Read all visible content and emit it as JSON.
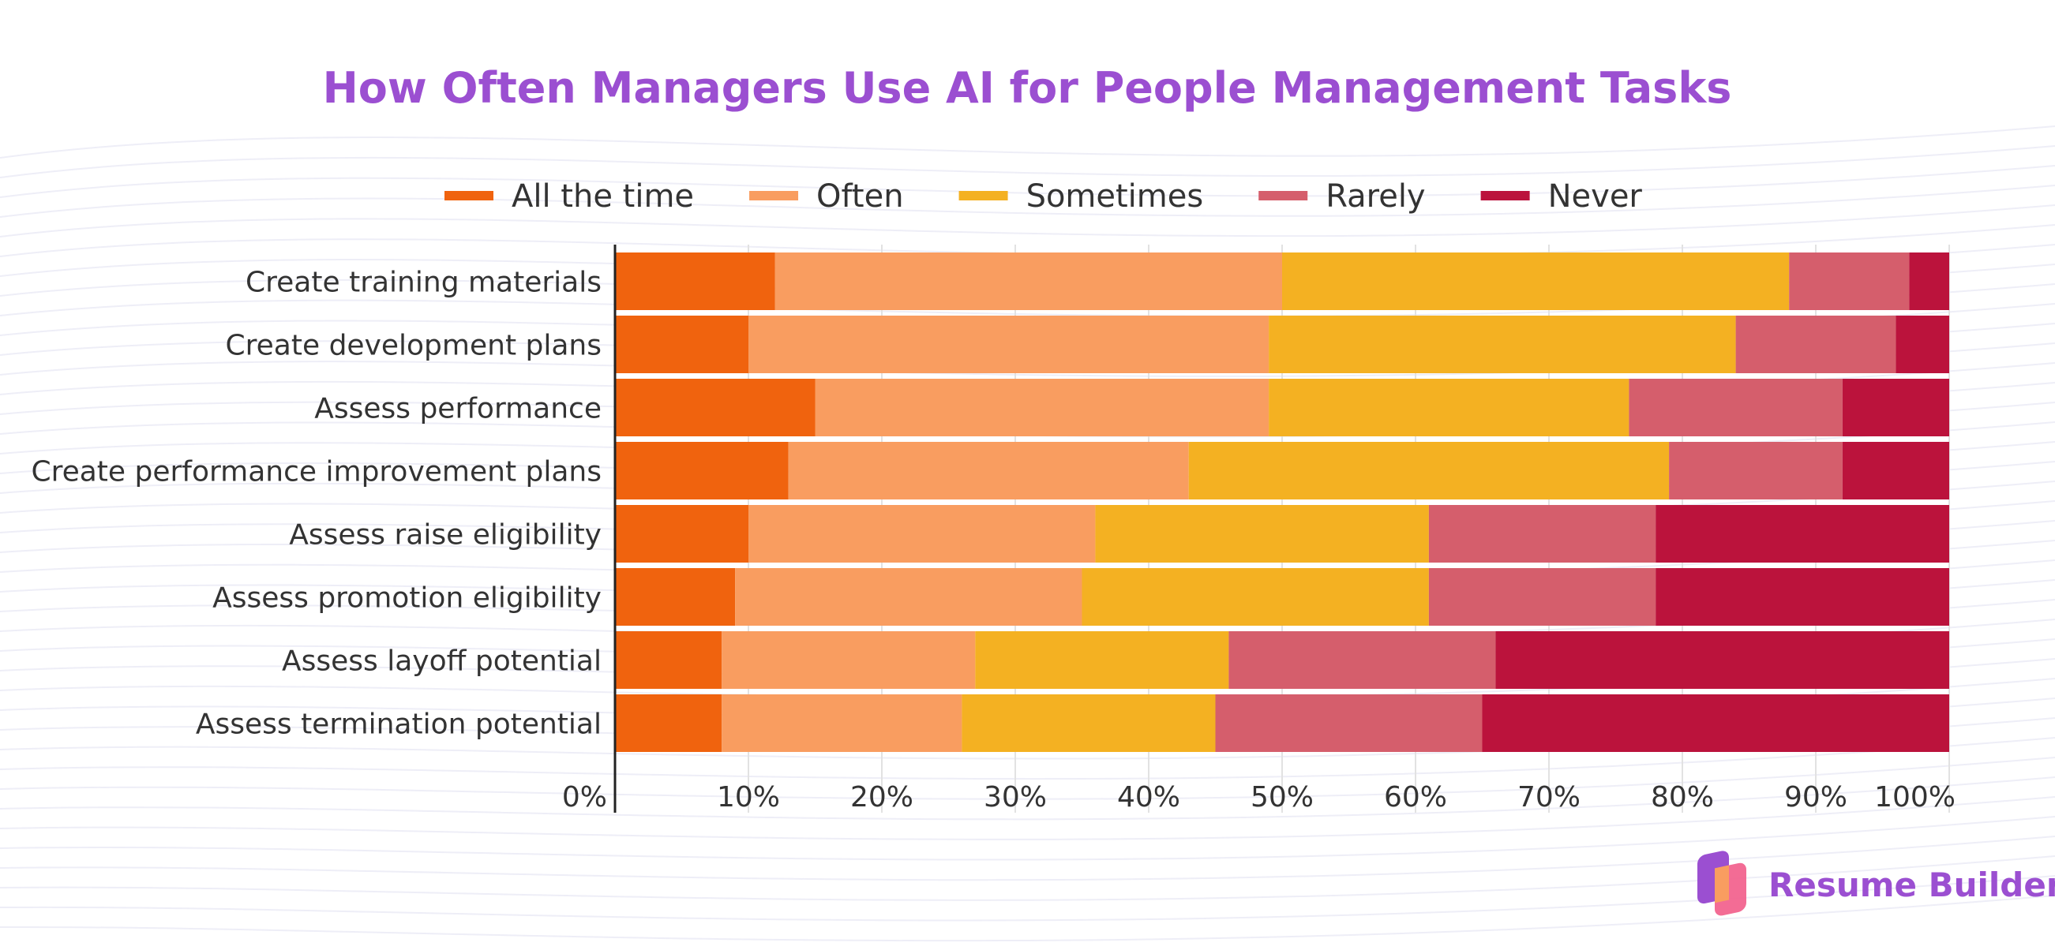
{
  "chart_data": {
    "type": "bar",
    "orientation": "horizontal",
    "stacked": true,
    "title": "How Often Managers Use AI for People Management Tasks",
    "categories": [
      "Create training materials",
      "Create development plans",
      "Assess performance",
      "Create performance improvement plans",
      "Assess raise eligibility",
      "Assess promotion eligibility",
      "Assess layoff potential",
      "Assess termination potential"
    ],
    "series": [
      {
        "name": "All the time",
        "color": "#f0630e",
        "values": [
          12,
          10,
          15,
          13,
          10,
          9,
          8,
          8
        ]
      },
      {
        "name": "Often",
        "color": "#f99d60",
        "values": [
          38,
          39,
          34,
          30,
          26,
          26,
          19,
          18
        ]
      },
      {
        "name": "Sometimes",
        "color": "#f4b122",
        "values": [
          38,
          35,
          27,
          36,
          25,
          26,
          19,
          19
        ]
      },
      {
        "name": "Rarely",
        "color": "#d55e6c",
        "values": [
          9,
          12,
          16,
          13,
          17,
          17,
          20,
          20
        ]
      },
      {
        "name": "Never",
        "color": "#bb133c",
        "values": [
          3,
          4,
          8,
          8,
          22,
          22,
          34,
          35
        ]
      }
    ],
    "xlim": [
      0,
      100
    ],
    "xticks": [
      "0%",
      "10%",
      "20%",
      "30%",
      "40%",
      "50%",
      "60%",
      "70%",
      "80%",
      "90%",
      "100%"
    ],
    "grid": "vertical",
    "legend": "top-center",
    "xlabel": "",
    "ylabel": ""
  },
  "brand": {
    "name": "Resume Builder",
    "color": "#9b4fd1"
  },
  "title_color": "#9b4fd1"
}
